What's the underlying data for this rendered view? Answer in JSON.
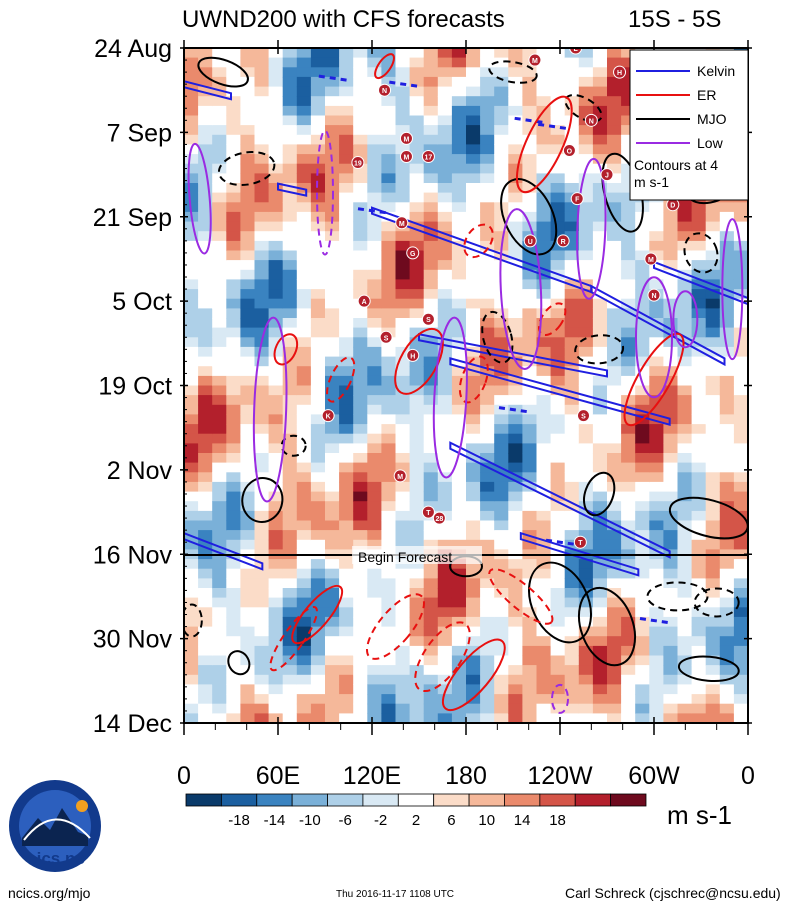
{
  "chart_data": {
    "type": "heatmap",
    "title": "UWND200 with CFS forecasts",
    "region_label": "15S - 5S",
    "y_ticks": [
      "24 Aug",
      "7 Sep",
      "21 Sep",
      "5 Oct",
      "19 Oct",
      "2 Nov",
      "16 Nov",
      "30 Nov",
      "14 Dec"
    ],
    "x_ticks": [
      "0",
      "60E",
      "120E",
      "180",
      "120W",
      "60W",
      "0"
    ],
    "xlim": [
      0,
      360
    ],
    "day_range": [
      0,
      112
    ],
    "forecast_start_day": 84,
    "forecast_label": "Begin Forecast",
    "legend": {
      "entries": [
        {
          "label": "Kelvin",
          "color": "#1f1fe0"
        },
        {
          "label": "ER",
          "color": "#e81010"
        },
        {
          "label": "MJO",
          "color": "#000000"
        },
        {
          "label": "Low",
          "color": "#9a2be2"
        }
      ],
      "note": "Contours at 4 m s-1"
    },
    "colorbar": {
      "ticks": [
        "-18",
        "-14",
        "-10",
        "-6",
        "-2",
        "2",
        "6",
        "10",
        "14",
        "18"
      ],
      "unit": "m s-1",
      "colors": [
        "#0a3a6a",
        "#1b5fa0",
        "#3a83c0",
        "#7ab0d8",
        "#aed0e8",
        "#d9e9f4",
        "#ffffff",
        "#fbdcc8",
        "#f5b89a",
        "#ea8a6c",
        "#d45548",
        "#b3202c",
        "#6e0a1e"
      ]
    },
    "kelvin_waves": [
      {
        "x": [
          0,
          30
        ],
        "day": [
          6,
          8
        ]
      },
      {
        "x": [
          60,
          78
        ],
        "day": [
          23,
          24
        ]
      },
      {
        "x": [
          120,
          260
        ],
        "day": [
          27,
          40
        ]
      },
      {
        "x": [
          150,
          270
        ],
        "day": [
          48,
          54
        ]
      },
      {
        "x": [
          260,
          345
        ],
        "day": [
          40,
          52
        ]
      },
      {
        "x": [
          170,
          310
        ],
        "day": [
          52,
          62
        ]
      },
      {
        "x": [
          300,
          360
        ],
        "day": [
          36,
          42
        ]
      },
      {
        "x": [
          0,
          50
        ],
        "day": [
          81,
          86
        ]
      },
      {
        "x": [
          170,
          310
        ],
        "day": [
          66,
          84
        ]
      },
      {
        "x": [
          215,
          290
        ],
        "day": [
          81,
          87
        ]
      }
    ],
    "tc_labels": [
      "N",
      "M",
      "M",
      "17",
      "19",
      "M",
      "G",
      "A",
      "S",
      "S",
      "H",
      "K",
      "M",
      "T",
      "28",
      "L",
      "M",
      "H",
      "N",
      "O",
      "J",
      "F",
      "U",
      "R",
      "D",
      "M",
      "N",
      "S",
      "T"
    ]
  },
  "footer": {
    "logo_text": "cics.nc",
    "logo_ring_text": "Cooperative Institute for Climate and Satellites",
    "website": "ncics.org/mjo",
    "timestamp": "Thu 2016-11-17 1108 UTC",
    "author": "Carl Schreck (cjschrec@ncsu.edu)"
  }
}
